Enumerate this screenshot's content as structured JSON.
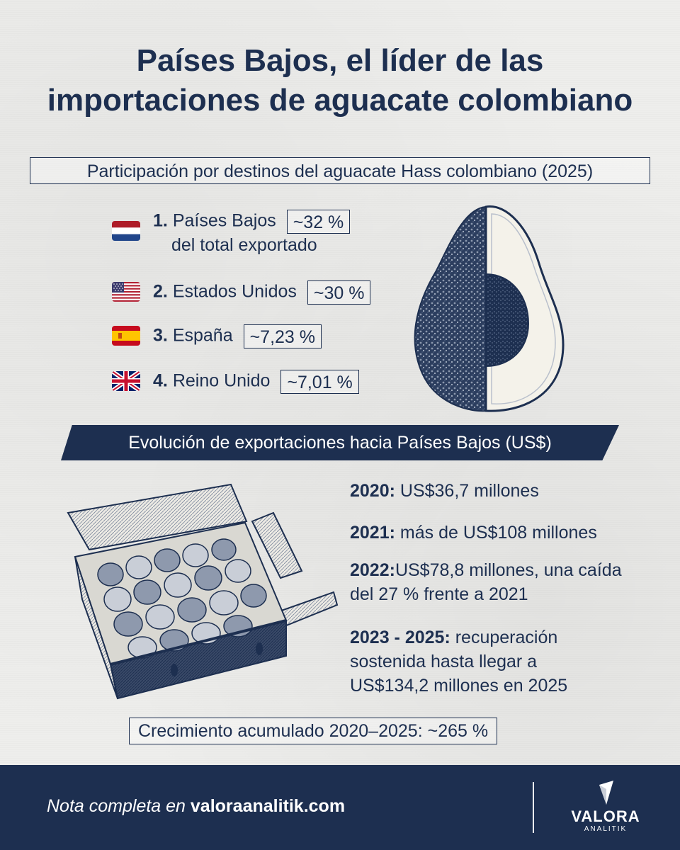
{
  "title": {
    "line1": "Países Bajos, el líder de las",
    "line2": "importaciones de aguacate colombiano"
  },
  "section1": {
    "heading": "Participación por destinos del aguacate Hass colombiano (2025)",
    "destinations": [
      {
        "rank": "1.",
        "name": "Países Bajos",
        "pct": "~32 %",
        "extra": "del total exportado",
        "flag_icon": "netherlands-flag-icon"
      },
      {
        "rank": "2.",
        "name": "Estados Unidos",
        "pct": "~30 %",
        "flag_icon": "usa-flag-icon"
      },
      {
        "rank": "3.",
        "name": "España",
        "pct": "~7,23 %",
        "flag_icon": "spain-flag-icon"
      },
      {
        "rank": "4.",
        "name": "Reino Unido",
        "pct": "~7,01 %",
        "flag_icon": "uk-flag-icon"
      }
    ]
  },
  "section2": {
    "banner": "Evolución de exportaciones hacia Países Bajos (US$)",
    "facts": [
      {
        "year": "2020:",
        "text": " US$36,7 millones"
      },
      {
        "year": "2021:",
        "text": " más de US$108 millones"
      },
      {
        "year": "2022:",
        "text": "US$78,8 millones, una caída del 27 % frente a 2021"
      },
      {
        "year": "2023 - 2025:",
        "text": " recuperación sostenida hasta llegar a US$134,2 millones en 2025"
      }
    ],
    "growth": "Crecimiento acumulado 2020–2025: ~265 %"
  },
  "footer": {
    "note_prefix": "Nota completa en ",
    "note_site": "valoraanalitik.com",
    "logo_name": "VALORA",
    "logo_sub": "ANALITIK"
  },
  "colors": {
    "navy": "#1d2f50",
    "background": "#eeeeec",
    "avocado_flesh": "#f4f2ea"
  }
}
